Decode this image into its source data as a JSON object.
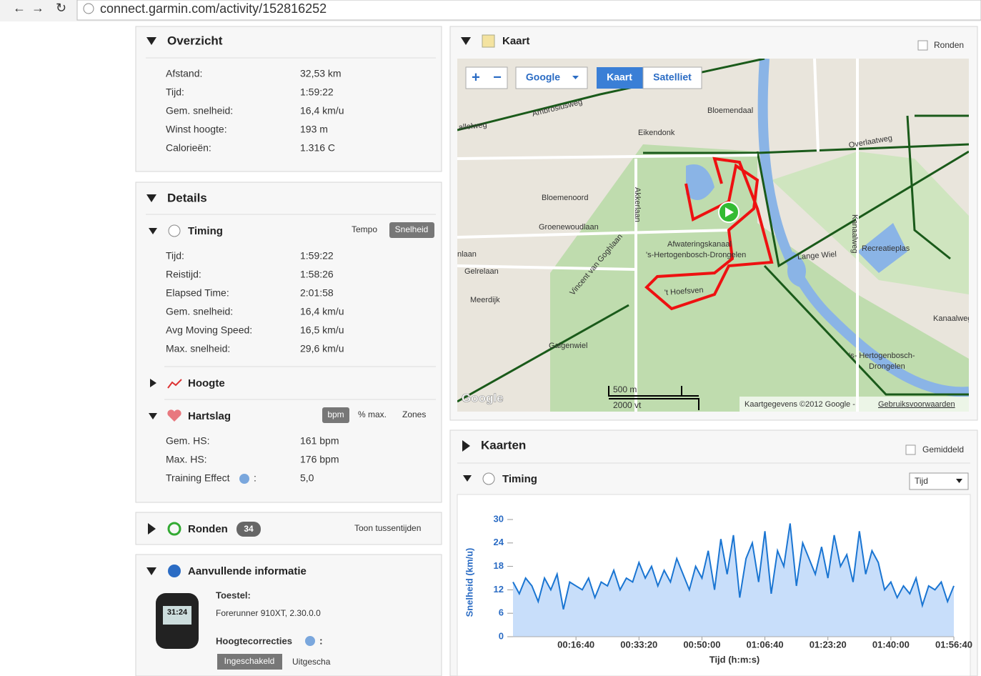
{
  "browser": {
    "url": "connect.garmin.com/activity/152816252"
  },
  "overview": {
    "title": "Overzicht",
    "rows": [
      [
        "Afstand:",
        "32,53 km"
      ],
      [
        "Tijd:",
        "1:59:22"
      ],
      [
        "Gem. snelheid:",
        "16,4 km/u"
      ],
      [
        "Winst hoogte:",
        "193 m"
      ],
      [
        "Calorieën:",
        "1.316 C"
      ]
    ]
  },
  "details": {
    "title": "Details",
    "timing": {
      "title": "Timing",
      "tabs": [
        "Tempo",
        "Snelheid"
      ],
      "rows": [
        [
          "Tijd:",
          "1:59:22"
        ],
        [
          "Reistijd:",
          "1:58:26"
        ],
        [
          "Elapsed Time:",
          "2:01:58"
        ],
        [
          "Gem. snelheid:",
          "16,4 km/u"
        ],
        [
          "Avg Moving Speed:",
          "16,5 km/u"
        ],
        [
          "Max. snelheid:",
          "29,6 km/u"
        ]
      ]
    },
    "elevation": {
      "title": "Hoogte"
    },
    "heart_rate": {
      "title": "Hartslag",
      "tabs": [
        "bpm",
        "% max.",
        "Zones"
      ],
      "rows": [
        [
          "Gem. HS:",
          "161 bpm"
        ],
        [
          "Max. HS:",
          "176 bpm"
        ]
      ],
      "effect_label": "Training Effect",
      "effect_colon": ":",
      "effect_value": "5,0"
    }
  },
  "laps": {
    "title": "Ronden",
    "count": 34,
    "link": "Toon tussentijden"
  },
  "info": {
    "title": "Aanvullende informatie",
    "watch_display": "31:24",
    "device_label": "Toestel:",
    "device": "Forerunner 910XT, 2.30.0.0",
    "elev_label": "Hoogtecorrecties",
    "elev_colon": ":",
    "buttons": [
      "Ingeschakeld",
      "Uitgescha"
    ]
  },
  "map": {
    "title": "Kaart",
    "laps_checkbox": "Ronden",
    "provider": "Google",
    "modes": [
      "Kaart",
      "Satelliet"
    ],
    "labels": [
      "Ambrosiusweg",
      "allelweg",
      "Bloemendaal",
      "Eikendonk",
      "Overlaatweg",
      "Bloemenoord",
      "Akkerlaan",
      "Groenewoudlaan",
      "Kanaalweg",
      "Afwateringskanaal",
      "'s-Hertogenbosch-Drongelen",
      "Lange Wiel",
      "Recreatieplas",
      "Gelrelaan",
      "Meerdijk",
      "Vincent van Goghlaan",
      "'t Hoefsven",
      "Galgenwiel",
      "Kanaalweg",
      "'s- Hertogenbosch-",
      "Drongelen",
      "nlaan"
    ],
    "scale": [
      "500 m",
      "2000 vt"
    ],
    "logo": "Google",
    "attribution": "Kaartgegevens ©2012 Google -",
    "terms": "Gebruiksvoorwaarden"
  },
  "charts": {
    "title": "Kaarten",
    "avg_checkbox": "Gemiddeld",
    "timing": "Timing",
    "select": "Tijd",
    "speed_chart": {
      "type": "area",
      "xlabel": "Tijd (h:m:s)",
      "ylabel": "Snelheid (km/u)",
      "color": "#1a75d2",
      "x": [
        0,
        100,
        200,
        300,
        400,
        500,
        600,
        700,
        800,
        900,
        1000,
        1100,
        1200,
        1300,
        1400,
        1500,
        1600,
        1700,
        1800,
        1900,
        2000,
        2100,
        2200,
        2300,
        2400,
        2500,
        2600,
        2700,
        2800,
        2900,
        3000,
        3100,
        3200,
        3300,
        3400,
        3500,
        3600,
        3700,
        3800,
        3900,
        4000,
        4100,
        4200,
        4300,
        4400,
        4500,
        4600,
        4700,
        4800,
        4900,
        5000,
        5100,
        5200,
        5300,
        5400,
        5500,
        5600,
        5700,
        5800,
        5900,
        6000,
        6100,
        6200,
        6300,
        6400,
        6500,
        6600,
        6700,
        6800,
        6900,
        7000
      ],
      "values": [
        14,
        11,
        15,
        13,
        9,
        15,
        12,
        16,
        7,
        14,
        13,
        12,
        15,
        10,
        14,
        13,
        17,
        12,
        15,
        14,
        19,
        15,
        18,
        13,
        17,
        14,
        20,
        16,
        12,
        18,
        15,
        22,
        12,
        25,
        16,
        26,
        10,
        20,
        24,
        14,
        27,
        11,
        22,
        18,
        29,
        13,
        24,
        20,
        16,
        23,
        15,
        26,
        18,
        21,
        14,
        27,
        16,
        22,
        19,
        12,
        14,
        10,
        13,
        11,
        15,
        8,
        13,
        12,
        14,
        9,
        13
      ],
      "xlim": [
        0,
        7000
      ],
      "ylim": [
        0,
        30
      ],
      "yticks": [
        0,
        6,
        12,
        18,
        24,
        30
      ],
      "xticks": [
        {
          "value": 1000,
          "label": "00:16:40"
        },
        {
          "value": 2000,
          "label": "00:33:20"
        },
        {
          "value": 3000,
          "label": "00:50:00"
        },
        {
          "value": 4000,
          "label": "01:06:40"
        },
        {
          "value": 5000,
          "label": "01:23:20"
        },
        {
          "value": 6000,
          "label": "01:40:00"
        },
        {
          "value": 7000,
          "label": "01:56:40"
        }
      ],
      "grid": false
    }
  }
}
